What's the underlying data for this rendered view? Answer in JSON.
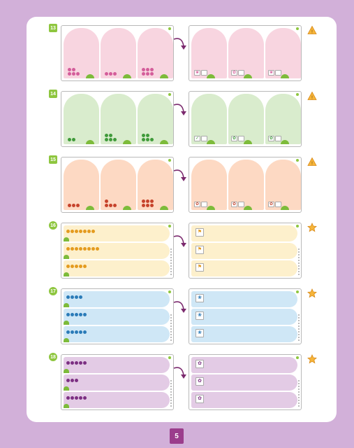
{
  "exercises": [
    {
      "number": "13",
      "layout": "columns",
      "color": "#f8d5e0",
      "item_color": "#d45d9a",
      "symbol": "warning-triangle-icon",
      "counts": [
        5,
        3,
        6
      ],
      "answers": [
        "❀",
        "✿",
        "❀"
      ]
    },
    {
      "number": "14",
      "layout": "columns",
      "color": "#d9eccd",
      "item_color": "#3f9a3a",
      "symbol": "warning-triangle-icon",
      "counts": [
        2,
        5,
        5
      ],
      "answers": [
        "✓",
        "✿",
        "✿"
      ]
    },
    {
      "number": "15",
      "layout": "columns",
      "color": "#fdd9c3",
      "item_color": "#c6422b",
      "symbol": "warning-triangle-icon",
      "counts": [
        3,
        4,
        6
      ],
      "answers": [
        "✿",
        "✿",
        "✿"
      ]
    },
    {
      "number": "16",
      "layout": "bands",
      "color": "#fdf0cc",
      "item_color": "#e49b1f",
      "symbol": "star-icon",
      "counts": [
        7,
        8,
        5
      ],
      "answers": [
        "⚑",
        "⚑",
        "⚑"
      ]
    },
    {
      "number": "17",
      "layout": "bands",
      "color": "#cfe7f6",
      "item_color": "#2a7bb8",
      "symbol": "star-icon",
      "counts": [
        4,
        5,
        5
      ],
      "answers": [
        "❀",
        "❀",
        "❀"
      ]
    },
    {
      "number": "18",
      "layout": "bands",
      "color": "#e3cbe5",
      "item_color": "#7c2f82",
      "symbol": "star-icon",
      "counts": [
        5,
        3,
        5
      ],
      "answers": [
        "✿",
        "✿",
        "✿"
      ]
    }
  ],
  "page_number": "5"
}
